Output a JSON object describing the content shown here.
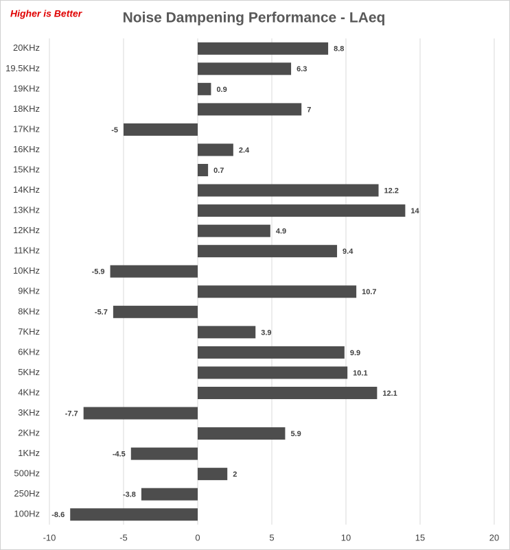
{
  "chart_data": {
    "type": "barh",
    "title": "Noise Dampening Performance - LAeq",
    "annotation": "Higher is Better",
    "categories": [
      "20KHz",
      "19.5KHz",
      "19KHz",
      "18KHz",
      "17KHz",
      "16KHz",
      "15KHz",
      "14KHz",
      "13KHz",
      "12KHz",
      "11KHz",
      "10KHz",
      "9KHz",
      "8KHz",
      "7KHz",
      "6KHz",
      "5KHz",
      "4KHz",
      "3KHz",
      "2KHz",
      "1KHz",
      "500Hz",
      "250Hz",
      "100Hz"
    ],
    "values": [
      8.8,
      6.3,
      0.9,
      7,
      -5,
      2.4,
      0.7,
      12.2,
      14,
      4.9,
      9.4,
      -5.9,
      10.7,
      -5.7,
      3.9,
      9.9,
      10.1,
      12.1,
      -7.7,
      5.9,
      -4.5,
      2,
      -3.8,
      -8.6
    ],
    "color": "#4d4d4d",
    "xlim": [
      -10,
      20
    ],
    "xticks": [
      -10,
      -5,
      0,
      5,
      10,
      15,
      20
    ],
    "grid": true
  }
}
